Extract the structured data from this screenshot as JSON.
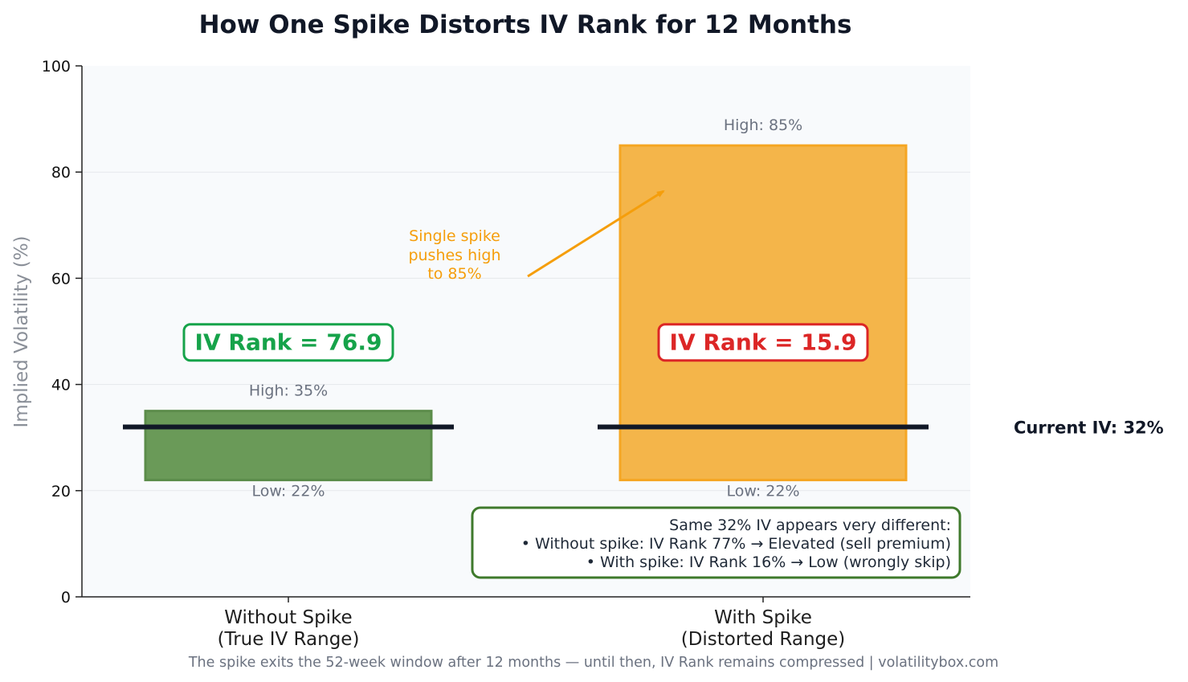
{
  "chart_data": {
    "type": "bar",
    "title": "How One Spike Distorts IV Rank for 12 Months",
    "xlabel": "",
    "ylabel": "Implied Volatility (%)",
    "ylim": [
      0,
      100
    ],
    "yticks": [
      "0",
      "20",
      "40",
      "60",
      "80",
      "100"
    ],
    "grid": true,
    "categories": [
      {
        "line1": "Without Spike",
        "line2": "(True IV Range)"
      },
      {
        "line1": "With Spike",
        "line2": "(Distorted Range)"
      }
    ],
    "bars": [
      {
        "low": 22,
        "high": 35,
        "color": "#6a9a58",
        "edge": "#5b8c4a",
        "high_label": "High: 35%",
        "low_label": "Low: 22%",
        "rank_label": "IV Rank = 76.9",
        "rank_color": "#16a34a"
      },
      {
        "low": 22,
        "high": 85,
        "color": "#f4b54a",
        "edge": "#f5a623",
        "high_label": "High: 85%",
        "low_label": "Low: 22%",
        "rank_label": "IV Rank = 15.9",
        "rank_color": "#dc2626"
      }
    ],
    "current_iv": {
      "value": 32,
      "label": "Current IV: 32%"
    },
    "annotation": {
      "lines": [
        "Single spike",
        "pushes high",
        "to 85%"
      ],
      "color": "#f59e0b"
    },
    "summary": {
      "lines": [
        "Same 32% IV appears very different:",
        "• Without spike: IV Rank 77% → Elevated (sell premium)",
        "• With spike: IV Rank 16% → Low (wrongly skip)"
      ],
      "border_color": "#3f7a2c"
    },
    "footer": "The spike exits the 52-week window after 12 months — until then, IV Rank remains compressed | volatilitybox.com"
  }
}
